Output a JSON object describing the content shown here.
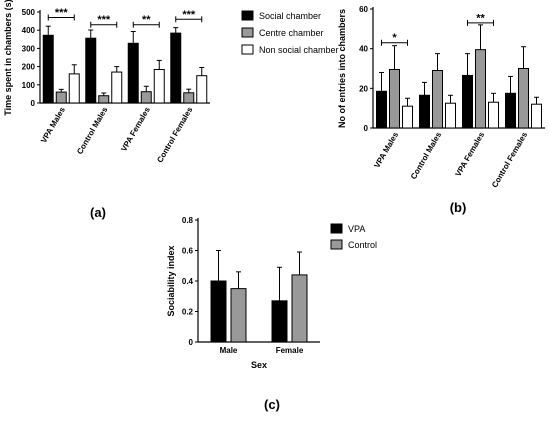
{
  "chart_data": [
    {
      "type": "bar",
      "panel_label": "(a)",
      "ylabel": "Time spent in chambers (s)",
      "ylim": [
        0,
        500
      ],
      "yticks": [
        0,
        100,
        200,
        300,
        400,
        500
      ],
      "categories": [
        "VPA Males",
        "Control Males",
        "VPA Females",
        "Control Females"
      ],
      "series": [
        {
          "name": "Social chamber",
          "color": "#000000",
          "values": [
            372,
            356,
            328,
            384
          ],
          "errors": [
            50,
            45,
            65,
            30
          ]
        },
        {
          "name": "Centre chamber",
          "color": "#999999",
          "values": [
            60,
            40,
            62,
            56
          ],
          "errors": [
            15,
            15,
            30,
            20
          ]
        },
        {
          "name": "Non social chamber",
          "color": "#ffffff",
          "values": [
            160,
            170,
            184,
            150
          ],
          "errors": [
            50,
            30,
            50,
            45
          ]
        }
      ],
      "significance": [
        {
          "category": 0,
          "from_series": 0,
          "to_series": 2,
          "y": 470,
          "label": "***"
        },
        {
          "category": 1,
          "from_series": 0,
          "to_series": 2,
          "y": 430,
          "label": "***"
        },
        {
          "category": 2,
          "from_series": 0,
          "to_series": 2,
          "y": 430,
          "label": "**"
        },
        {
          "category": 3,
          "from_series": 0,
          "to_series": 2,
          "y": 460,
          "label": "***"
        }
      ],
      "legend_position": "right"
    },
    {
      "type": "bar",
      "panel_label": "(b)",
      "ylabel": "No of entries into chambers",
      "ylim": [
        0,
        60
      ],
      "yticks": [
        0,
        20,
        40,
        60
      ],
      "categories": [
        "VPA Males",
        "Control Males",
        "VPA Females",
        "Control Females"
      ],
      "series": [
        {
          "name": "Social chamber",
          "color": "#000000",
          "values": [
            18.5,
            16.5,
            26.5,
            17.5
          ],
          "errors": [
            9.5,
            6.5,
            11,
            8.5
          ]
        },
        {
          "name": "Centre chamber",
          "color": "#999999",
          "values": [
            29.5,
            29,
            39.5,
            30
          ],
          "errors": [
            12,
            8.5,
            12.5,
            11
          ]
        },
        {
          "name": "Non social chamber",
          "color": "#ffffff",
          "values": [
            11,
            12.5,
            13,
            12
          ],
          "errors": [
            4,
            4,
            4.5,
            3.5
          ]
        }
      ],
      "significance": [
        {
          "category": 0,
          "from_series": 0,
          "to_series": 2,
          "y": 43,
          "label": "*"
        },
        {
          "category": 2,
          "from_series": 0,
          "to_series": 2,
          "y": 53,
          "label": "**"
        }
      ]
    },
    {
      "type": "bar",
      "panel_label": "(c)",
      "xlabel": "Sex",
      "ylabel": "Sociability index",
      "ylim": [
        0,
        0.8
      ],
      "yticks": [
        0.0,
        0.2,
        0.4,
        0.6,
        0.8
      ],
      "categories": [
        "Male",
        "Female"
      ],
      "series": [
        {
          "name": "VPA",
          "color": "#000000",
          "values": [
            0.4,
            0.27
          ],
          "errors": [
            0.2,
            0.22
          ]
        },
        {
          "name": "Control",
          "color": "#999999",
          "values": [
            0.35,
            0.44
          ],
          "errors": [
            0.11,
            0.15
          ]
        }
      ],
      "legend_position": "right"
    }
  ]
}
